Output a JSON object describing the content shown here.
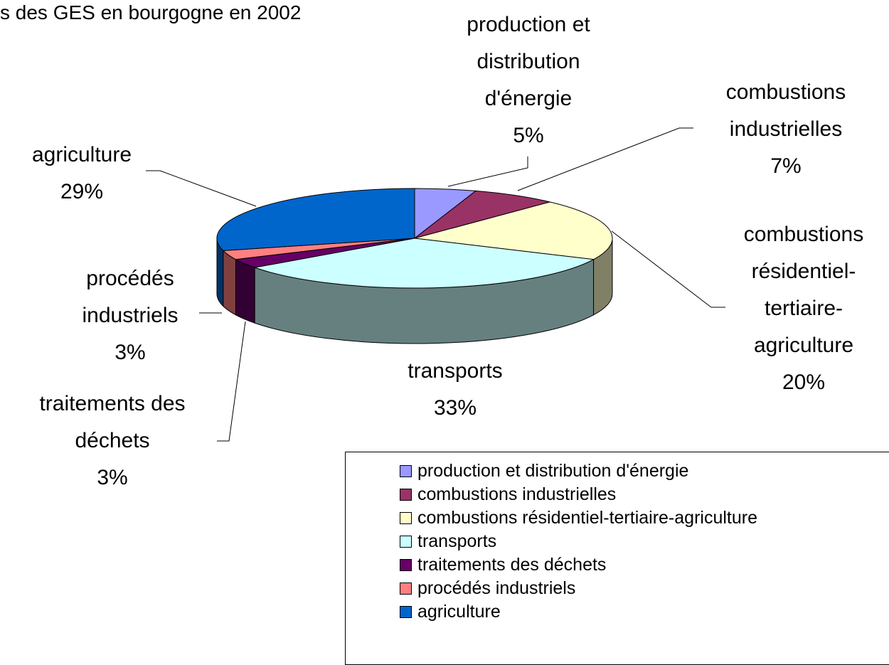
{
  "chart_data": {
    "type": "pie",
    "title": "s des GES en bourgogne en 2002",
    "categories": [
      "production et distribution d'énergie",
      "combustions industrielles",
      "combustions résidentiel-tertiaire-agriculture",
      "transports",
      "traitements des déchets",
      "procédés industriels",
      "agriculture"
    ],
    "values": [
      5,
      7,
      20,
      33,
      3,
      3,
      29
    ],
    "value_labels": [
      "5%",
      "7%",
      "20%",
      "33%",
      "3%",
      "3%",
      "29%"
    ],
    "colors": [
      "#9999ff",
      "#993366",
      "#ffffcc",
      "#ccffff",
      "#660066",
      "#ff8080",
      "#0066cc"
    ]
  }
}
